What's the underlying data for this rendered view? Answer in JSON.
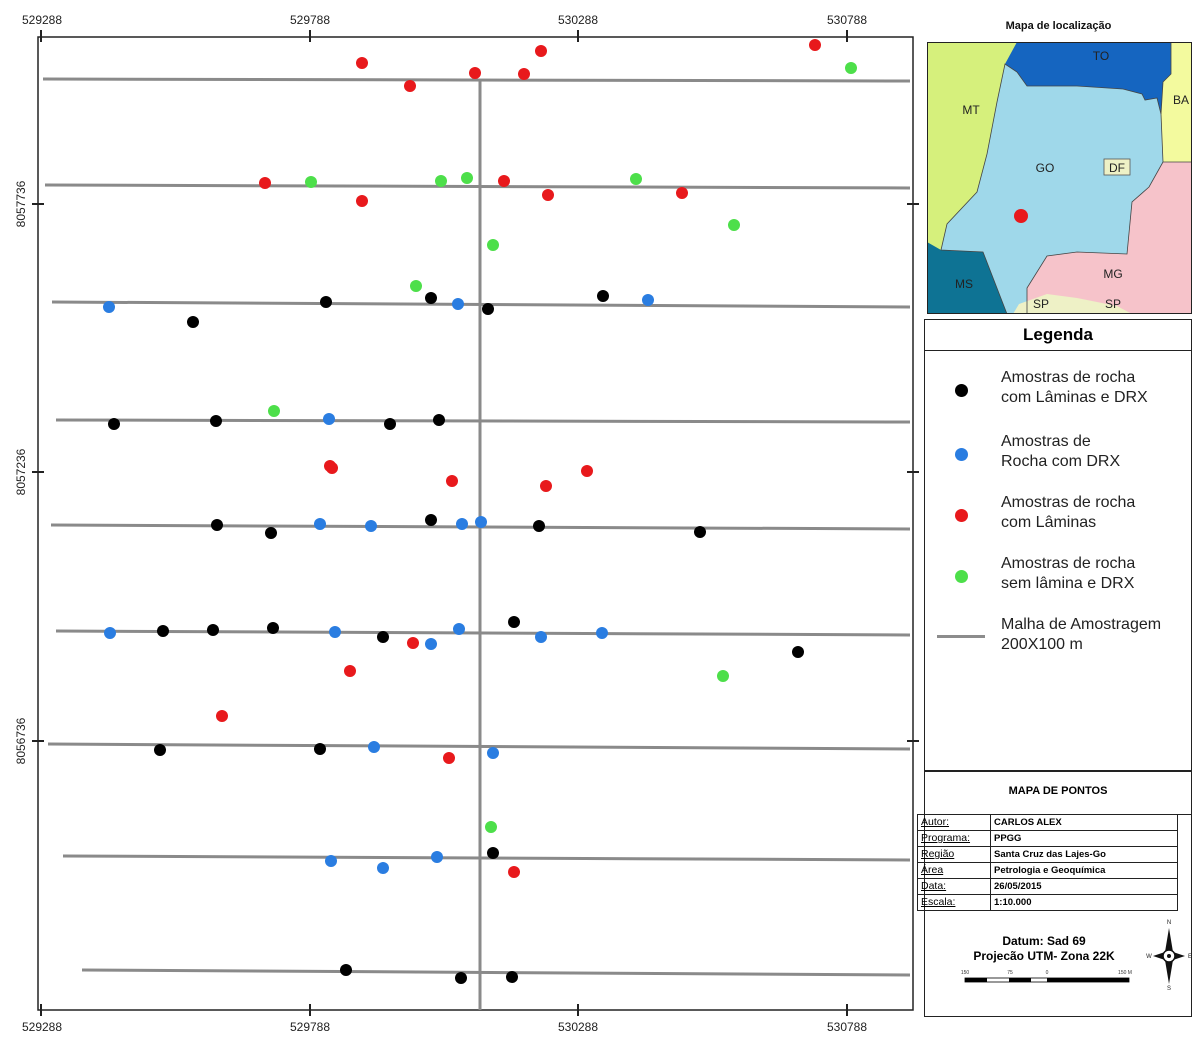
{
  "map": {
    "x_ticks": [
      "529288",
      "529788",
      "530288",
      "530788"
    ],
    "y_ticks": [
      "8057736",
      "8057236",
      "8056736"
    ],
    "colors": {
      "line": "#8a8a8a",
      "frame": "#222222"
    },
    "point_colors": {
      "laminas_drx": "#000000",
      "rocha_drx": "#2a7de1",
      "laminas": "#e8191c",
      "sem_lamina_drx": "#4ddf4a"
    },
    "points": {
      "laminas_drx": [
        [
          326,
          302
        ],
        [
          431,
          298
        ],
        [
          488,
          309
        ],
        [
          603,
          296
        ],
        [
          193,
          322
        ],
        [
          114,
          424
        ],
        [
          216,
          421
        ],
        [
          390,
          424
        ],
        [
          439,
          420
        ],
        [
          217,
          525
        ],
        [
          271,
          533
        ],
        [
          431,
          520
        ],
        [
          539,
          526
        ],
        [
          700,
          532
        ],
        [
          163,
          631
        ],
        [
          213,
          630
        ],
        [
          273,
          628
        ],
        [
          383,
          637
        ],
        [
          514,
          622
        ],
        [
          798,
          652
        ],
        [
          160,
          750
        ],
        [
          320,
          749
        ],
        [
          493,
          853
        ],
        [
          346,
          970
        ],
        [
          461,
          978
        ],
        [
          512,
          977
        ]
      ],
      "rocha_drx": [
        [
          109,
          307
        ],
        [
          458,
          304
        ],
        [
          648,
          300
        ],
        [
          329,
          419
        ],
        [
          320,
          524
        ],
        [
          371,
          526
        ],
        [
          462,
          524
        ],
        [
          481,
          522
        ],
        [
          110,
          633
        ],
        [
          335,
          632
        ],
        [
          431,
          644
        ],
        [
          459,
          629
        ],
        [
          541,
          637
        ],
        [
          602,
          633
        ],
        [
          374,
          747
        ],
        [
          493,
          753
        ],
        [
          331,
          861
        ],
        [
          383,
          868
        ],
        [
          437,
          857
        ]
      ],
      "laminas": [
        [
          362,
          63
        ],
        [
          410,
          86
        ],
        [
          475,
          73
        ],
        [
          524,
          74
        ],
        [
          541,
          51
        ],
        [
          815,
          45
        ],
        [
          265,
          183
        ],
        [
          362,
          201
        ],
        [
          504,
          181
        ],
        [
          548,
          195
        ],
        [
          682,
          193
        ],
        [
          330,
          466
        ],
        [
          332,
          468
        ],
        [
          452,
          481
        ],
        [
          546,
          486
        ],
        [
          587,
          471
        ],
        [
          413,
          643
        ],
        [
          350,
          671
        ],
        [
          222,
          716
        ],
        [
          449,
          758
        ],
        [
          514,
          872
        ]
      ],
      "sem_lamina_drx": [
        [
          851,
          68
        ],
        [
          311,
          182
        ],
        [
          441,
          181
        ],
        [
          467,
          178
        ],
        [
          636,
          179
        ],
        [
          734,
          225
        ],
        [
          493,
          245
        ],
        [
          416,
          286
        ],
        [
          274,
          411
        ],
        [
          723,
          676
        ],
        [
          491,
          827
        ]
      ]
    }
  },
  "inset": {
    "title": "Mapa de localização",
    "states": [
      "TO",
      "MT",
      "BA",
      "GO",
      "DF",
      "MS",
      "MG",
      "SP",
      "SP"
    ],
    "colors": {
      "GO": "#9fd8ea",
      "MT": "#d6f07c",
      "TO": "#1565c0",
      "MS": "#0e7394",
      "MG": "#f6c3ca",
      "SP": "#eef1c6",
      "BA": "#f3fa9e",
      "point": "#e8191c"
    }
  },
  "legend": {
    "title": "Legenda",
    "items": [
      {
        "line1": "Amostras de rocha",
        "line2": "com Lâminas e DRX",
        "color": "#000000"
      },
      {
        "line1": "Amostras de",
        "line2": "Rocha com DRX",
        "color": "#2a7de1"
      },
      {
        "line1": "Amostras de rocha",
        "line2": "com Lâminas",
        "color": "#e8191c"
      },
      {
        "line1": "Amostras de rocha",
        "line2": "sem lâmina e DRX",
        "color": "#4ddf4a"
      }
    ],
    "grid_line1": "Malha de Amostragem",
    "grid_line2": "200X100 m"
  },
  "info": {
    "title": "MAPA DE PONTOS",
    "rows": [
      {
        "key": "Autor:",
        "value": "CARLOS ALEX"
      },
      {
        "key": "Programa:",
        "value": "PPGG"
      },
      {
        "key": "Região",
        "value": "Santa Cruz das Lajes-Go"
      },
      {
        "key": "Área",
        "value": "Petrologia e Geoquímica"
      },
      {
        "key": "Data:",
        "value": "26/05/2015"
      },
      {
        "key": "Escala:",
        "value": "1:10.000"
      }
    ],
    "datum_line1": "Datum: Sad 69",
    "datum_line2": "Projecão UTM- Zona 22K",
    "scale_labels": [
      "150",
      "75",
      "0",
      "150 M"
    ],
    "compass": [
      "N",
      "S",
      "W",
      "E"
    ]
  }
}
